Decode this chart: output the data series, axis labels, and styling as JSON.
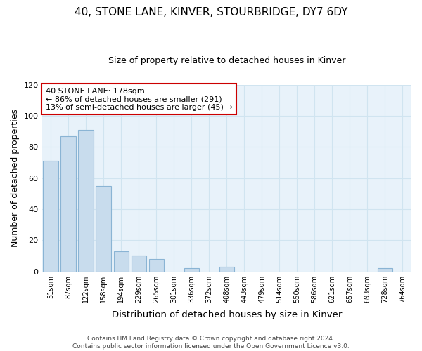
{
  "title": "40, STONE LANE, KINVER, STOURBRIDGE, DY7 6DY",
  "subtitle": "Size of property relative to detached houses in Kinver",
  "xlabel": "Distribution of detached houses by size in Kinver",
  "ylabel": "Number of detached properties",
  "bar_labels": [
    "51sqm",
    "87sqm",
    "122sqm",
    "158sqm",
    "194sqm",
    "229sqm",
    "265sqm",
    "301sqm",
    "336sqm",
    "372sqm",
    "408sqm",
    "443sqm",
    "479sqm",
    "514sqm",
    "550sqm",
    "586sqm",
    "621sqm",
    "657sqm",
    "693sqm",
    "728sqm",
    "764sqm"
  ],
  "bar_heights": [
    71,
    87,
    91,
    55,
    13,
    10,
    8,
    0,
    2,
    0,
    3,
    0,
    0,
    0,
    0,
    0,
    0,
    0,
    0,
    2,
    0
  ],
  "bar_color": "#c8dced",
  "bar_edge_color": "#8ab4d4",
  "annotation_line1": "40 STONE LANE: 178sqm",
  "annotation_line2": "← 86% of detached houses are smaller (291)",
  "annotation_line3": "13% of semi-detached houses are larger (45) →",
  "annotation_box_color": "white",
  "annotation_box_edge_color": "#cc0000",
  "grid_color": "#d0e4f0",
  "bg_color": "#e8f2fa",
  "ylim": [
    0,
    120
  ],
  "yticks": [
    0,
    20,
    40,
    60,
    80,
    100,
    120
  ],
  "footer_line1": "Contains HM Land Registry data © Crown copyright and database right 2024.",
  "footer_line2": "Contains public sector information licensed under the Open Government Licence v3.0."
}
